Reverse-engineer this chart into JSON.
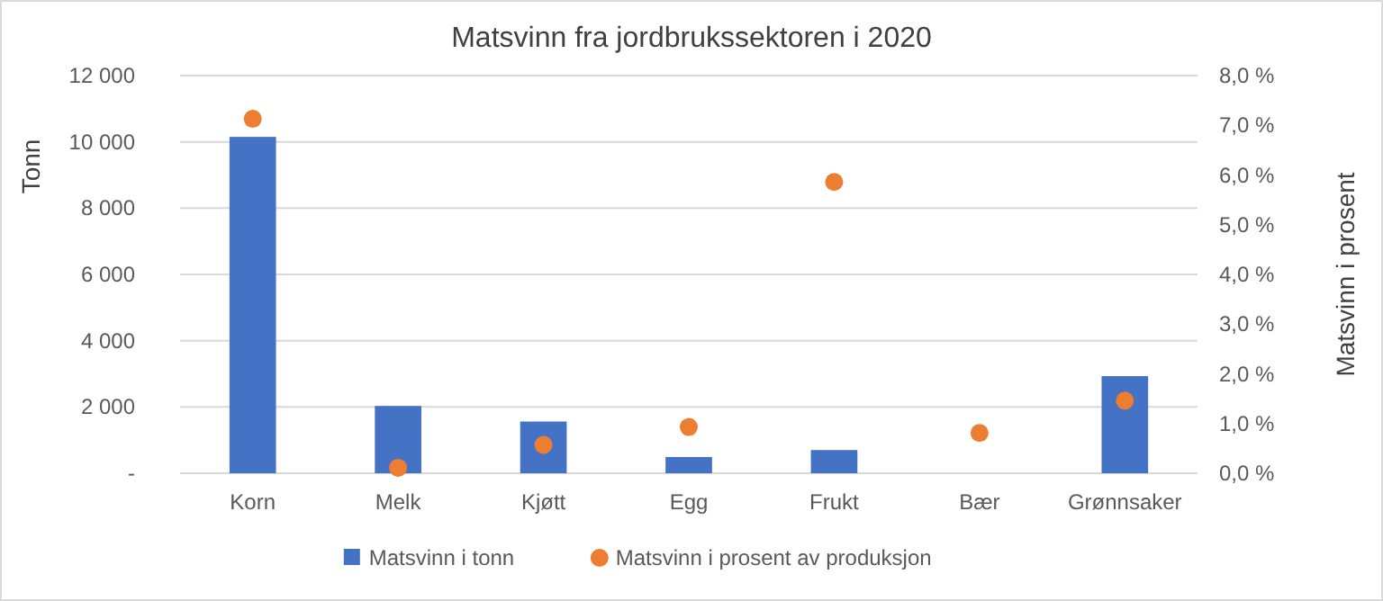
{
  "chart_data": {
    "type": "bar",
    "title": "Matsvinn fra jordbrukssektoren i 2020",
    "ylabel": "Tonn",
    "y2label": "Matsvinn i prosent",
    "categories": [
      "Korn",
      "Melk",
      "Kjøtt",
      "Egg",
      "Frukt",
      "Bær",
      "Grønnsaker"
    ],
    "series": [
      {
        "name": "Matsvinn i tonn",
        "color": "#4472c4",
        "values": [
          10150,
          2030,
          1560,
          490,
          700,
          0,
          2930
        ]
      },
      {
        "name": "Matsvinn i prosent av produksjon",
        "color": "#ed7d31",
        "type": "scatter",
        "axis": "y2",
        "values": [
          7.13,
          0.11,
          0.57,
          0.93,
          5.86,
          0.81,
          1.46
        ]
      }
    ],
    "ylim": [
      0,
      12000
    ],
    "yticks": [
      {
        "value": 0,
        "label": "-"
      },
      {
        "value": 2000,
        "label": "2 000"
      },
      {
        "value": 4000,
        "label": "4 000"
      },
      {
        "value": 6000,
        "label": "6 000"
      },
      {
        "value": 8000,
        "label": "8 000"
      },
      {
        "value": 10000,
        "label": "10 000"
      },
      {
        "value": 12000,
        "label": "12 000"
      }
    ],
    "y2lim": [
      0,
      8
    ],
    "y2ticks": [
      {
        "value": 0,
        "label": "0,0 %"
      },
      {
        "value": 1,
        "label": "1,0 %"
      },
      {
        "value": 2,
        "label": "2,0 %"
      },
      {
        "value": 3,
        "label": "3,0 %"
      },
      {
        "value": 4,
        "label": "4,0 %"
      },
      {
        "value": 5,
        "label": "5,0 %"
      },
      {
        "value": 6,
        "label": "6,0 %"
      },
      {
        "value": 7,
        "label": "7,0 %"
      },
      {
        "value": 8,
        "label": "8,0 %"
      }
    ],
    "grid": "y",
    "legend": "bottom",
    "marker": "circle"
  }
}
